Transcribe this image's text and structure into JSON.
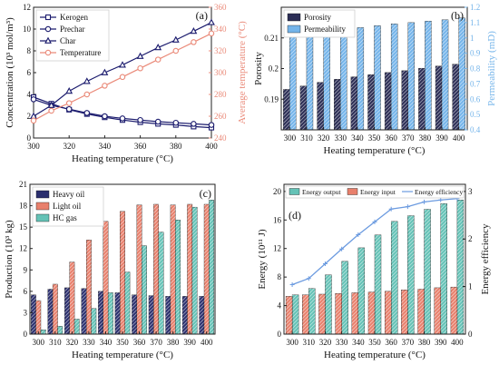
{
  "chart_data": [
    {
      "type": "line",
      "panel_label": "(a)",
      "x": [
        300,
        310,
        320,
        330,
        340,
        350,
        360,
        370,
        380,
        390,
        400
      ],
      "xlabel": "Heating temperature (°C)",
      "xlim": [
        300,
        400
      ],
      "xticks": [
        300,
        320,
        340,
        360,
        380,
        400
      ],
      "ylabel": "Concentration (10³ mol/m³)",
      "ylim": [
        0,
        12
      ],
      "yticks": [
        0,
        2,
        4,
        6,
        8,
        10,
        12
      ],
      "y2label": "Average temperature (°C)",
      "y2lim": [
        240,
        360
      ],
      "y2ticks": [
        240,
        260,
        280,
        300,
        320,
        340,
        360
      ],
      "legend_position": "top-left",
      "series": [
        {
          "name": "Kerogen",
          "axis": "left",
          "color": "#1c1c6e",
          "marker": "square",
          "values": [
            3.75,
            3.15,
            2.6,
            2.2,
            1.9,
            1.65,
            1.45,
            1.3,
            1.2,
            1.05,
            0.95
          ]
        },
        {
          "name": "Prechar",
          "axis": "left",
          "color": "#1c1c6e",
          "marker": "circle",
          "values": [
            3.55,
            3.0,
            2.65,
            2.3,
            2.0,
            1.8,
            1.65,
            1.5,
            1.4,
            1.3,
            1.2
          ]
        },
        {
          "name": "Char",
          "axis": "left",
          "color": "#1c1c6e",
          "marker": "triangle",
          "values": [
            2.0,
            3.0,
            4.3,
            5.2,
            6.0,
            6.7,
            7.5,
            8.3,
            9.0,
            9.8,
            10.6
          ]
        },
        {
          "name": "Temperature",
          "axis": "right",
          "color": "#ea8a79",
          "marker": "circle",
          "values": [
            256,
            265,
            272,
            280,
            288,
            296,
            304,
            312,
            320,
            328,
            336
          ]
        }
      ]
    },
    {
      "type": "bar",
      "panel_label": "(b)",
      "categories": [
        "300",
        "310",
        "320",
        "330",
        "340",
        "350",
        "360",
        "370",
        "380",
        "390",
        "400"
      ],
      "xlabel": "Heating temperature (°C)",
      "ylabel": "Porosity",
      "ylim": [
        0.18,
        0.22
      ],
      "yticks": [
        0.19,
        0.2,
        0.21
      ],
      "y2label": "Permeability (mD)",
      "y2lim": [
        0.4,
        1.2
      ],
      "y2ticks": [
        0.4,
        0.5,
        0.6,
        0.7,
        0.8,
        0.9,
        1.0,
        1.1,
        1.2
      ],
      "legend_position": "top-left",
      "series": [
        {
          "name": "Porosity",
          "axis": "left",
          "color": "#2b2d55",
          "values": [
            0.1932,
            0.1943,
            0.1955,
            0.1965,
            0.1973,
            0.198,
            0.1987,
            0.1993,
            0.2001,
            0.2008,
            0.2014
          ]
        },
        {
          "name": "Permeability",
          "axis": "right",
          "color": "#74b4ea",
          "values": [
            1.005,
            1.02,
            1.037,
            1.052,
            1.067,
            1.08,
            1.092,
            1.1,
            1.11,
            1.118,
            1.13
          ]
        }
      ]
    },
    {
      "type": "bar",
      "panel_label": "(c)",
      "categories": [
        "300",
        "310",
        "320",
        "330",
        "340",
        "350",
        "360",
        "370",
        "380",
        "390",
        "400"
      ],
      "xlabel": "Heating temperature (°C)",
      "ylabel": "Production (10³ kg)",
      "ylim": [
        0,
        21
      ],
      "yticks": [
        0,
        3,
        6,
        9,
        12,
        15,
        18,
        21
      ],
      "legend_position": "top-left",
      "series": [
        {
          "name": "Heavy oil",
          "color": "#2b2f6e",
          "values": [
            5.5,
            6.3,
            6.5,
            6.4,
            6.0,
            5.8,
            5.5,
            5.4,
            5.3,
            5.3,
            5.3
          ]
        },
        {
          "name": "Light oil",
          "color": "#e8806c",
          "values": [
            4.7,
            7.0,
            10.1,
            13.2,
            15.8,
            17.2,
            18.1,
            18.2,
            18.1,
            18.2,
            18.2
          ]
        },
        {
          "name": "HC gas",
          "color": "#64c2b6",
          "values": [
            0.6,
            1.1,
            2.1,
            3.6,
            5.8,
            8.7,
            12.4,
            14.3,
            16.0,
            17.8,
            18.8
          ]
        }
      ]
    },
    {
      "type": "bar",
      "panel_label": "(d)",
      "categories": [
        "300",
        "310",
        "320",
        "330",
        "340",
        "350",
        "360",
        "370",
        "380",
        "390",
        "400"
      ],
      "xlabel": "Heating temperature (°C)",
      "ylabel": "Energy (10¹¹ J)",
      "ylim": [
        0,
        21
      ],
      "yticks": [
        0,
        4,
        8,
        12,
        16,
        20
      ],
      "y2label": "Energy efficiency",
      "y2lim": [
        0,
        3.15
      ],
      "y2ticks": [
        0,
        1,
        2,
        3
      ],
      "legend_position": "top",
      "series": [
        {
          "name": "Energy output",
          "axis": "left",
          "color": "#64c2b6",
          "values": [
            5.5,
            6.4,
            8.3,
            10.2,
            12.1,
            13.9,
            15.8,
            16.6,
            17.5,
            18.3,
            18.8
          ]
        },
        {
          "name": "Energy input",
          "axis": "left",
          "color": "#e8806c",
          "values": [
            5.3,
            5.5,
            5.6,
            5.7,
            5.8,
            5.9,
            6.0,
            6.2,
            6.3,
            6.5,
            6.6
          ]
        },
        {
          "name": "Energy efficiency",
          "axis": "right",
          "color": "#6c9be0",
          "values": [
            1.04,
            1.17,
            1.48,
            1.79,
            2.09,
            2.36,
            2.63,
            2.68,
            2.78,
            2.82,
            2.85
          ]
        }
      ]
    }
  ]
}
